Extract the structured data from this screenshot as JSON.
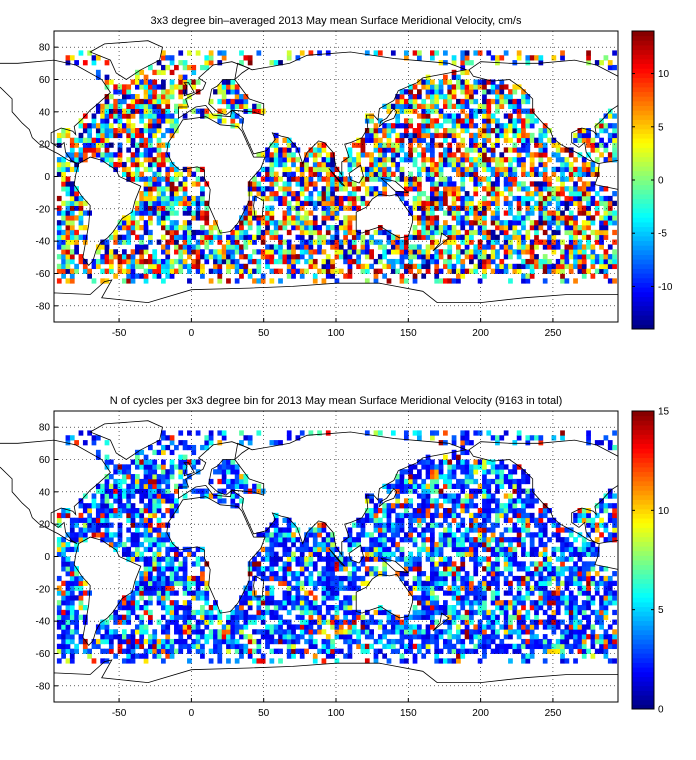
{
  "chart_data": [
    {
      "type": "heatmap",
      "title": "3x3 degree bin–averaged 2013 May mean Surface Meridional Velocity, cm/s",
      "xlim": [
        -95,
        295
      ],
      "ylim": [
        -90,
        90
      ],
      "x_ticks": [
        -50,
        0,
        50,
        100,
        150,
        200,
        250
      ],
      "y_ticks": [
        -80,
        -60,
        -40,
        -20,
        0,
        20,
        40,
        60,
        80
      ],
      "colorbar": {
        "min": -14,
        "max": 14,
        "ticks": [
          -10,
          -5,
          0,
          5,
          10
        ],
        "colormap": "jet"
      },
      "grid": "dotted",
      "bin_size_deg": 3,
      "field": "velocity"
    },
    {
      "type": "heatmap",
      "title": "N of cycles per 3x3 degree bin for 2013 May mean Surface Meridional Velocity (9163 in total)",
      "xlim": [
        -95,
        295
      ],
      "ylim": [
        -90,
        90
      ],
      "x_ticks": [
        -50,
        0,
        50,
        100,
        150,
        200,
        250
      ],
      "y_ticks": [
        -80,
        -60,
        -40,
        -20,
        0,
        20,
        40,
        60,
        80
      ],
      "colorbar": {
        "min": 0,
        "max": 15,
        "ticks": [
          0,
          5,
          10,
          15
        ],
        "colormap": "jet"
      },
      "grid": "dotted",
      "bin_size_deg": 3,
      "field": "count"
    }
  ]
}
